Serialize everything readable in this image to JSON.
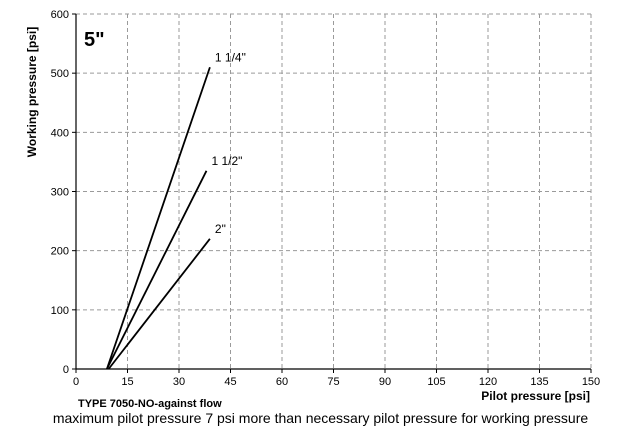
{
  "chart_data": {
    "type": "line",
    "size_label": "5\"",
    "subtitle": "TYPE 7050-NO-against flow",
    "note": "maximum pilot pressure 7 psi more than necessary pilot pressure for working pressure",
    "xlabel": "Pilot pressure [psi]",
    "ylabel": "Working pressure [psi]",
    "xlim": [
      0,
      150
    ],
    "ylim": [
      0,
      600
    ],
    "x_ticks": [
      0,
      15,
      30,
      45,
      60,
      75,
      90,
      105,
      120,
      135,
      150
    ],
    "y_ticks": [
      0,
      100,
      200,
      300,
      400,
      500,
      600
    ],
    "grid": true,
    "series": [
      {
        "name": "1 1/4\"",
        "points": [
          [
            9,
            0
          ],
          [
            39,
            510
          ]
        ]
      },
      {
        "name": "1 1/2\"",
        "points": [
          [
            9,
            0
          ],
          [
            38,
            335
          ]
        ]
      },
      {
        "name": "2\"",
        "points": [
          [
            9.5,
            0
          ],
          [
            39,
            220
          ]
        ]
      }
    ]
  }
}
